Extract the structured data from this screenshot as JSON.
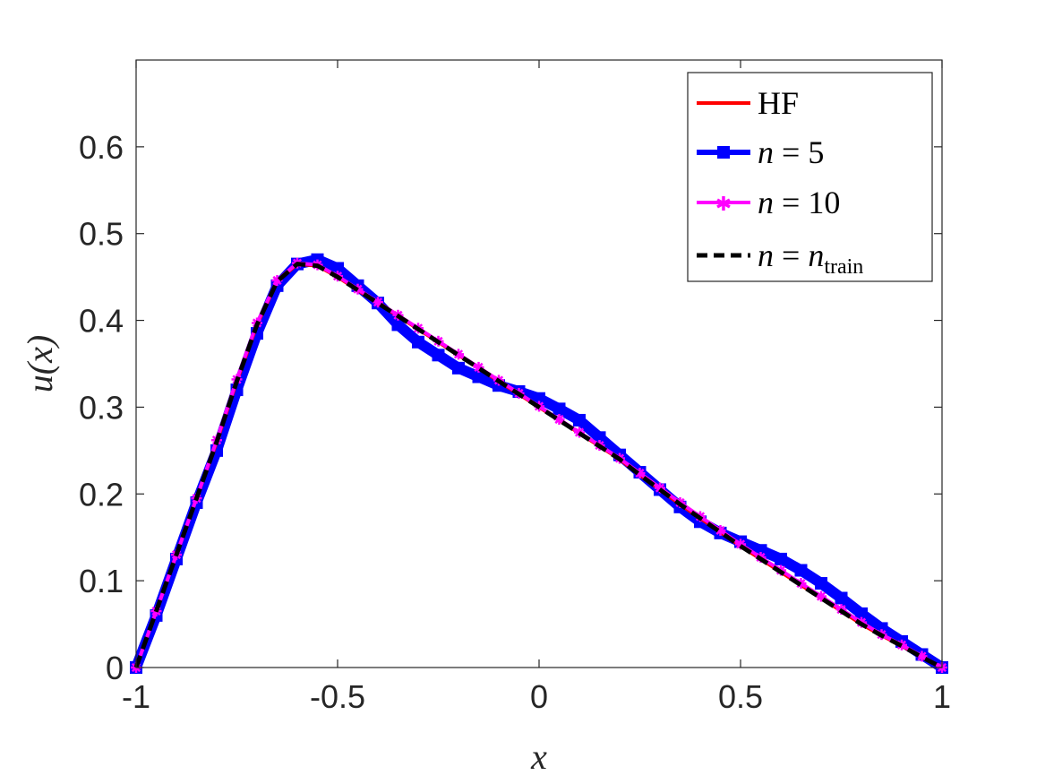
{
  "chart_data": {
    "type": "line",
    "title": "",
    "xlabel": "x",
    "ylabel": "u(x)",
    "xlim": [
      -1,
      1
    ],
    "ylim": [
      0,
      0.7
    ],
    "xticks": [
      -1,
      -0.5,
      0,
      0.5,
      1
    ],
    "xtick_labels": [
      "-1",
      "-0.5",
      "0",
      "0.5",
      "1"
    ],
    "yticks": [
      0,
      0.1,
      0.2,
      0.3,
      0.4,
      0.5,
      0.6
    ],
    "ytick_labels": [
      "0",
      "0.1",
      "0.2",
      "0.3",
      "0.4",
      "0.5",
      "0.6"
    ],
    "grid": false,
    "legend_position": "top-right",
    "series": [
      {
        "name": "HF",
        "color": "#ff0000",
        "style": "solid",
        "marker": "none",
        "x": [
          -1,
          -0.95,
          -0.9,
          -0.85,
          -0.8,
          -0.75,
          -0.7,
          -0.65,
          -0.6,
          -0.55,
          -0.5,
          -0.45,
          -0.4,
          -0.35,
          -0.3,
          -0.25,
          -0.2,
          -0.15,
          -0.1,
          -0.05,
          0,
          0.05,
          0.1,
          0.15,
          0.2,
          0.25,
          0.3,
          0.35,
          0.4,
          0.45,
          0.5,
          0.55,
          0.6,
          0.65,
          0.7,
          0.75,
          0.8,
          0.85,
          0.9,
          0.95,
          1
        ],
        "y": [
          0,
          0.065,
          0.13,
          0.195,
          0.26,
          0.33,
          0.395,
          0.445,
          0.465,
          0.463,
          0.45,
          0.435,
          0.42,
          0.405,
          0.39,
          0.375,
          0.36,
          0.345,
          0.33,
          0.315,
          0.3,
          0.285,
          0.27,
          0.255,
          0.24,
          0.222,
          0.205,
          0.188,
          0.172,
          0.156,
          0.14,
          0.125,
          0.11,
          0.095,
          0.08,
          0.065,
          0.05,
          0.037,
          0.025,
          0.012,
          0
        ]
      },
      {
        "name": "n = 5",
        "color": "#0000ff",
        "style": "solid",
        "marker": "square",
        "x": [
          -1,
          -0.95,
          -0.9,
          -0.85,
          -0.8,
          -0.75,
          -0.7,
          -0.65,
          -0.6,
          -0.55,
          -0.5,
          -0.45,
          -0.4,
          -0.35,
          -0.3,
          -0.25,
          -0.2,
          -0.15,
          -0.1,
          -0.05,
          0,
          0.05,
          0.1,
          0.15,
          0.2,
          0.25,
          0.3,
          0.35,
          0.4,
          0.45,
          0.5,
          0.55,
          0.6,
          0.65,
          0.7,
          0.75,
          0.8,
          0.85,
          0.9,
          0.95,
          1
        ],
        "y": [
          0,
          0.06,
          0.125,
          0.19,
          0.25,
          0.32,
          0.385,
          0.44,
          0.465,
          0.47,
          0.46,
          0.44,
          0.42,
          0.395,
          0.375,
          0.36,
          0.345,
          0.335,
          0.325,
          0.318,
          0.31,
          0.298,
          0.285,
          0.265,
          0.245,
          0.225,
          0.205,
          0.185,
          0.168,
          0.155,
          0.145,
          0.135,
          0.125,
          0.112,
          0.097,
          0.08,
          0.062,
          0.045,
          0.03,
          0.015,
          0
        ]
      },
      {
        "name": "n = 10",
        "color": "#ff00ff",
        "style": "solid",
        "marker": "star",
        "x": [
          -1,
          -0.95,
          -0.9,
          -0.85,
          -0.8,
          -0.75,
          -0.7,
          -0.65,
          -0.6,
          -0.55,
          -0.5,
          -0.45,
          -0.4,
          -0.35,
          -0.3,
          -0.25,
          -0.2,
          -0.15,
          -0.1,
          -0.05,
          0,
          0.05,
          0.1,
          0.15,
          0.2,
          0.25,
          0.3,
          0.35,
          0.4,
          0.45,
          0.5,
          0.55,
          0.6,
          0.65,
          0.7,
          0.75,
          0.8,
          0.85,
          0.9,
          0.95,
          1
        ],
        "y": [
          0,
          0.065,
          0.13,
          0.195,
          0.262,
          0.332,
          0.397,
          0.446,
          0.466,
          0.464,
          0.451,
          0.436,
          0.421,
          0.406,
          0.391,
          0.376,
          0.361,
          0.346,
          0.331,
          0.316,
          0.301,
          0.286,
          0.271,
          0.256,
          0.241,
          0.224,
          0.207,
          0.19,
          0.174,
          0.158,
          0.142,
          0.127,
          0.112,
          0.097,
          0.082,
          0.067,
          0.052,
          0.038,
          0.026,
          0.013,
          0
        ]
      },
      {
        "name": "n = n_train",
        "color": "#000000",
        "style": "dashed",
        "marker": "none",
        "x": [
          -1,
          -0.95,
          -0.9,
          -0.85,
          -0.8,
          -0.75,
          -0.7,
          -0.65,
          -0.6,
          -0.55,
          -0.5,
          -0.45,
          -0.4,
          -0.35,
          -0.3,
          -0.25,
          -0.2,
          -0.15,
          -0.1,
          -0.05,
          0,
          0.05,
          0.1,
          0.15,
          0.2,
          0.25,
          0.3,
          0.35,
          0.4,
          0.45,
          0.5,
          0.55,
          0.6,
          0.65,
          0.7,
          0.75,
          0.8,
          0.85,
          0.9,
          0.95,
          1
        ],
        "y": [
          0,
          0.065,
          0.13,
          0.195,
          0.26,
          0.33,
          0.395,
          0.445,
          0.465,
          0.463,
          0.45,
          0.435,
          0.42,
          0.405,
          0.39,
          0.375,
          0.36,
          0.345,
          0.33,
          0.315,
          0.3,
          0.285,
          0.27,
          0.255,
          0.24,
          0.222,
          0.205,
          0.188,
          0.172,
          0.156,
          0.14,
          0.125,
          0.11,
          0.095,
          0.08,
          0.065,
          0.05,
          0.037,
          0.025,
          0.012,
          0
        ]
      }
    ],
    "legend": {
      "hf_label": "HF",
      "n_symbol": "n",
      "equals": " = ",
      "n5_value": "5",
      "n10_value": "10",
      "train_subscript": "train"
    }
  }
}
